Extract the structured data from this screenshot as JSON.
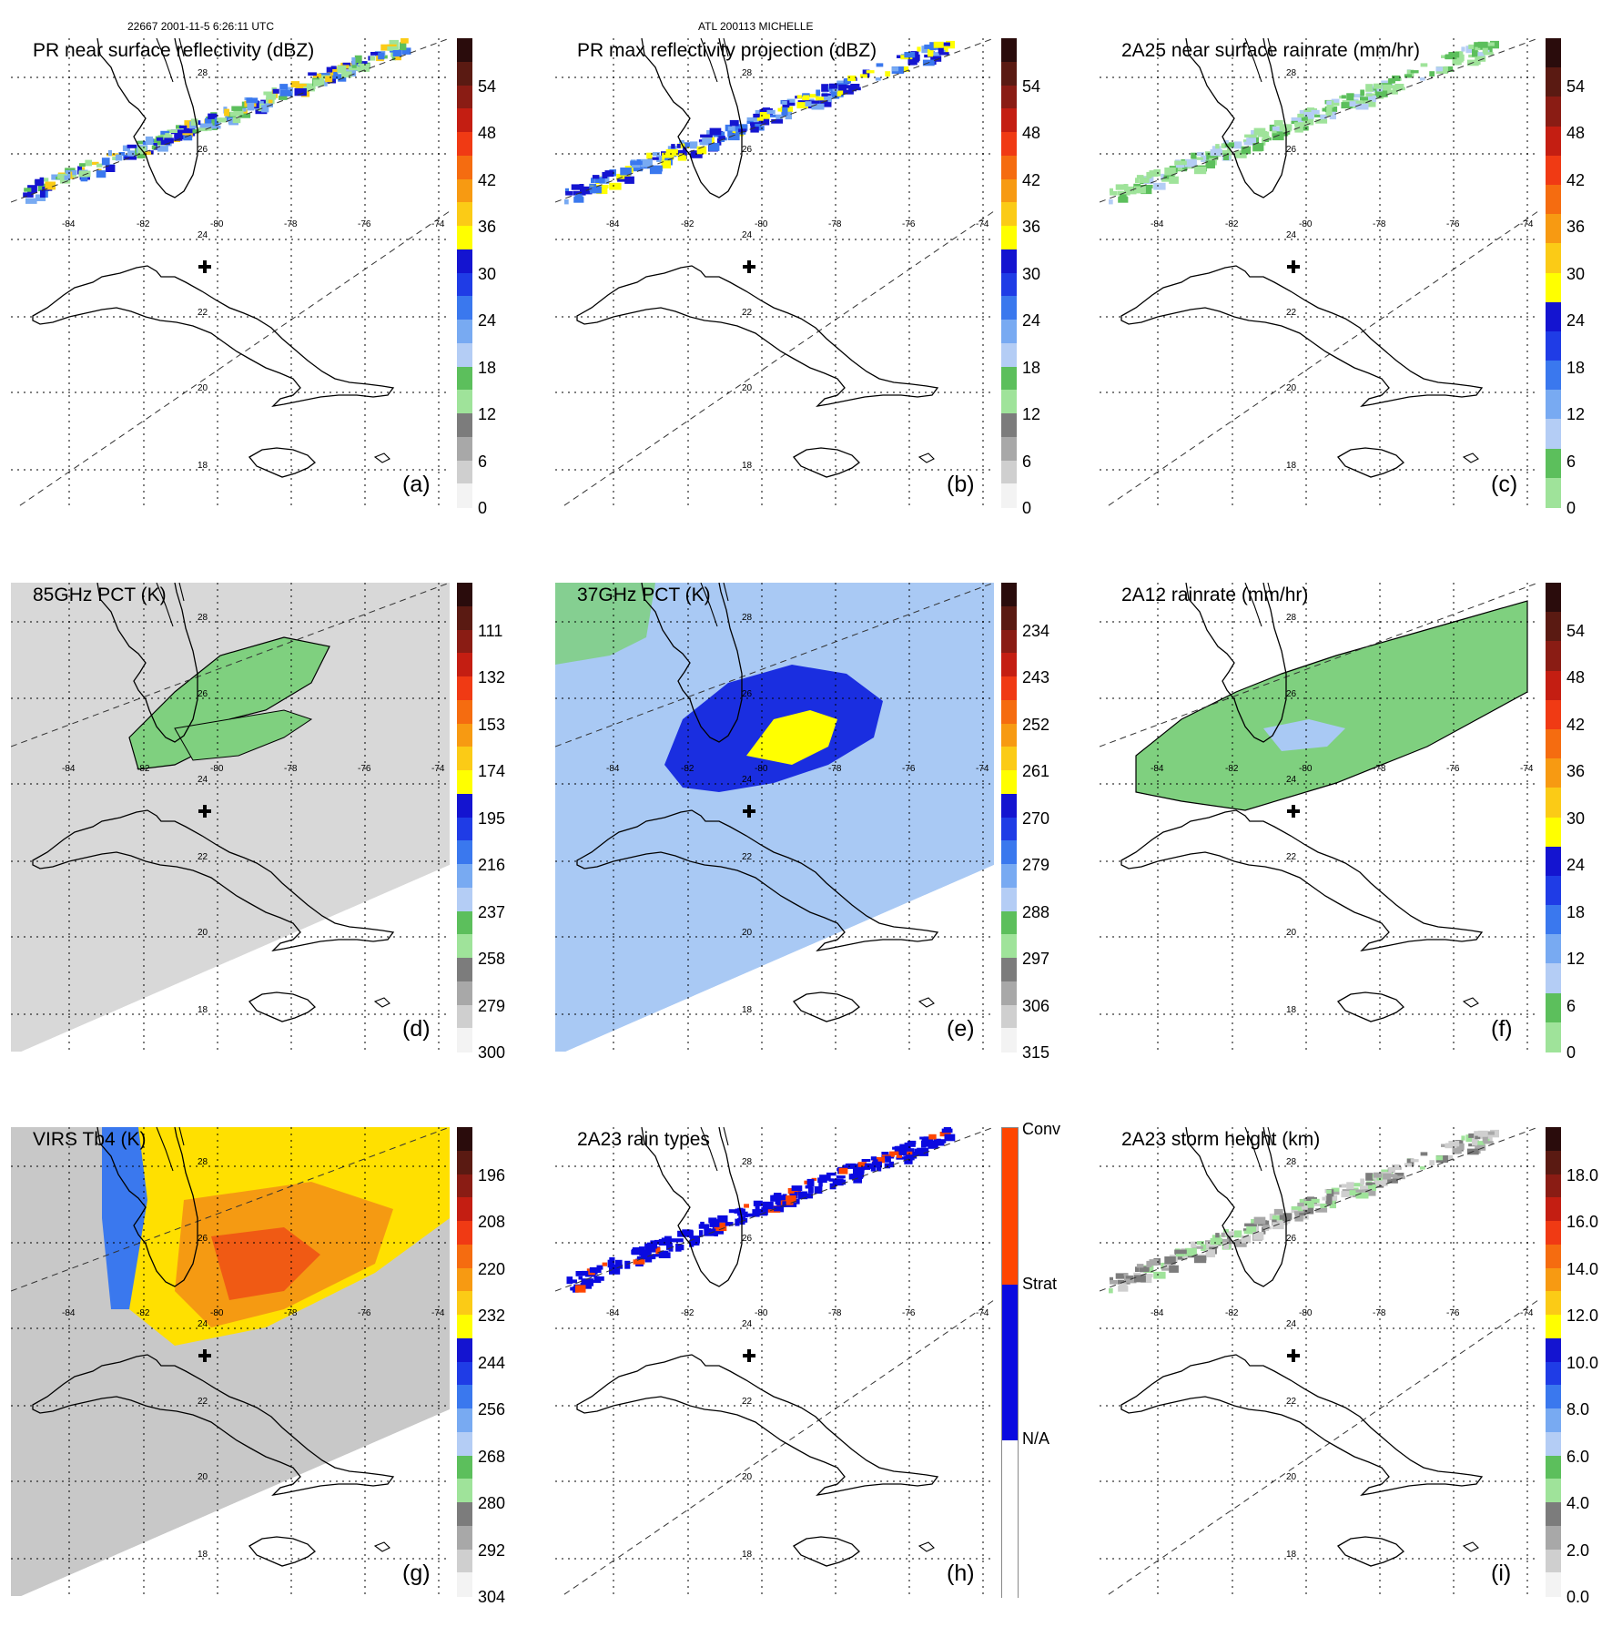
{
  "header": {
    "left": "22667 2001-11-5 6:26:11 UTC",
    "center": "ATL 200113 MICHELLE"
  },
  "lon_labels": [
    "-84",
    "-82",
    "-80",
    "-78",
    "-76",
    "-74"
  ],
  "lat_labels": [
    "28",
    "26",
    "24",
    "22",
    "20",
    "18"
  ],
  "panels": [
    {
      "id": "a",
      "title": "PR near surface reflectivity (dBZ)",
      "label": "(a)",
      "ticks": [
        "54",
        "48",
        "42",
        "36",
        "30",
        "24",
        "18",
        "12",
        "6",
        "0"
      ],
      "colors": [
        "#2a0c0c",
        "#5a1a12",
        "#8a1c14",
        "#c41e12",
        "#f03a14",
        "#f56c10",
        "#f79a12",
        "#fbcb16",
        "#ffff00",
        "#1414d0",
        "#1f3ce6",
        "#3a78ee",
        "#78aaf2",
        "#b4cdf5",
        "#5cbf5c",
        "#9fe39a",
        "#7c7c7c",
        "#a8a8a8",
        "#cfcfcf",
        "#f3f3f3"
      ],
      "ptype": "pr_near"
    },
    {
      "id": "b",
      "title": "PR max reflectivity projection (dBZ)",
      "label": "(b)",
      "ticks": [
        "54",
        "48",
        "42",
        "36",
        "30",
        "24",
        "18",
        "12",
        "6",
        "0"
      ],
      "colors": [
        "#2a0c0c",
        "#5a1a12",
        "#8a1c14",
        "#c41e12",
        "#f03a14",
        "#f56c10",
        "#f79a12",
        "#fbcb16",
        "#ffff00",
        "#1414d0",
        "#1f3ce6",
        "#3a78ee",
        "#78aaf2",
        "#b4cdf5",
        "#5cbf5c",
        "#9fe39a",
        "#7c7c7c",
        "#a8a8a8",
        "#cfcfcf",
        "#f3f3f3"
      ],
      "ptype": "pr_max"
    },
    {
      "id": "c",
      "title": "2A25 near surface rainrate (mm/hr)",
      "label": "(c)",
      "ticks": [
        "54",
        "48",
        "42",
        "36",
        "30",
        "24",
        "18",
        "12",
        "6",
        "0"
      ],
      "colors": [
        "#2a0c0c",
        "#5a1a12",
        "#8a1c14",
        "#c41e12",
        "#f03a14",
        "#f56c10",
        "#f79a12",
        "#fbcb16",
        "#ffff00",
        "#1414d0",
        "#1f3ce6",
        "#3a78ee",
        "#78aaf2",
        "#b4cdf5",
        "#5cbf5c",
        "#9fe39a"
      ],
      "ptype": "rain25"
    },
    {
      "id": "d",
      "title": "85GHz PCT (K)",
      "label": "(d)",
      "ticks": [
        "111",
        "132",
        "153",
        "174",
        "195",
        "216",
        "237",
        "258",
        "279",
        "300"
      ],
      "colors": [
        "#2a0c0c",
        "#5a1a12",
        "#8a1c14",
        "#c41e12",
        "#f03a14",
        "#f56c10",
        "#f79a12",
        "#fbcb16",
        "#ffff00",
        "#1414d0",
        "#1f3ce6",
        "#3a78ee",
        "#78aaf2",
        "#b4cdf5",
        "#5cbf5c",
        "#9fe39a",
        "#7c7c7c",
        "#a8a8a8",
        "#cfcfcf",
        "#f3f3f3"
      ],
      "ptype": "pct85"
    },
    {
      "id": "e",
      "title": "37GHz PCT (K)",
      "label": "(e)",
      "ticks": [
        "234",
        "243",
        "252",
        "261",
        "270",
        "279",
        "288",
        "297",
        "306",
        "315"
      ],
      "colors": [
        "#2a0c0c",
        "#5a1a12",
        "#8a1c14",
        "#c41e12",
        "#f03a14",
        "#f56c10",
        "#f79a12",
        "#fbcb16",
        "#ffff00",
        "#1414d0",
        "#1f3ce6",
        "#3a78ee",
        "#78aaf2",
        "#b4cdf5",
        "#5cbf5c",
        "#9fe39a",
        "#7c7c7c",
        "#a8a8a8",
        "#cfcfcf",
        "#f3f3f3"
      ],
      "ptype": "pct37"
    },
    {
      "id": "f",
      "title": "2A12 rainrate (mm/hr)",
      "label": "(f)",
      "ticks": [
        "54",
        "48",
        "42",
        "36",
        "30",
        "24",
        "18",
        "12",
        "6",
        "0"
      ],
      "colors": [
        "#2a0c0c",
        "#5a1a12",
        "#8a1c14",
        "#c41e12",
        "#f03a14",
        "#f56c10",
        "#f79a12",
        "#fbcb16",
        "#ffff00",
        "#1414d0",
        "#1f3ce6",
        "#3a78ee",
        "#78aaf2",
        "#b4cdf5",
        "#5cbf5c",
        "#9fe39a"
      ],
      "ptype": "rain12"
    },
    {
      "id": "g",
      "title": "VIRS Tb4 (K)",
      "label": "(g)",
      "ticks": [
        "196",
        "208",
        "220",
        "232",
        "244",
        "256",
        "268",
        "280",
        "292",
        "304"
      ],
      "colors": [
        "#2a0c0c",
        "#5a1a12",
        "#8a1c14",
        "#c41e12",
        "#f03a14",
        "#f56c10",
        "#f79a12",
        "#fbcb16",
        "#ffff00",
        "#1414d0",
        "#1f3ce6",
        "#3a78ee",
        "#78aaf2",
        "#b4cdf5",
        "#5cbf5c",
        "#9fe39a",
        "#7c7c7c",
        "#a8a8a8",
        "#cfcfcf",
        "#f3f3f3"
      ],
      "ptype": "virs"
    },
    {
      "id": "h",
      "title": "2A23 rain types",
      "label": "(h)",
      "ticks": [
        "Conv",
        "Strat",
        "N/A"
      ],
      "colors": [
        "#ff4500",
        "#0a0ae0",
        "#ffffff"
      ],
      "ptype": "types"
    },
    {
      "id": "i",
      "title": "2A23 storm height (km)",
      "label": "(i)",
      "ticks": [
        "18.0",
        "16.0",
        "14.0",
        "12.0",
        "10.0",
        "8.0",
        "6.0",
        "4.0",
        "2.0",
        "0.0"
      ],
      "colors": [
        "#2a0c0c",
        "#5a1a12",
        "#8a1c14",
        "#c41e12",
        "#f03a14",
        "#f56c10",
        "#f79a12",
        "#fbcb16",
        "#ffff00",
        "#1414d0",
        "#1f3ce6",
        "#3a78ee",
        "#78aaf2",
        "#b4cdf5",
        "#5cbf5c",
        "#9fe39a",
        "#7c7c7c",
        "#a8a8a8",
        "#cfcfcf",
        "#f3f3f3"
      ],
      "ptype": "height"
    }
  ]
}
